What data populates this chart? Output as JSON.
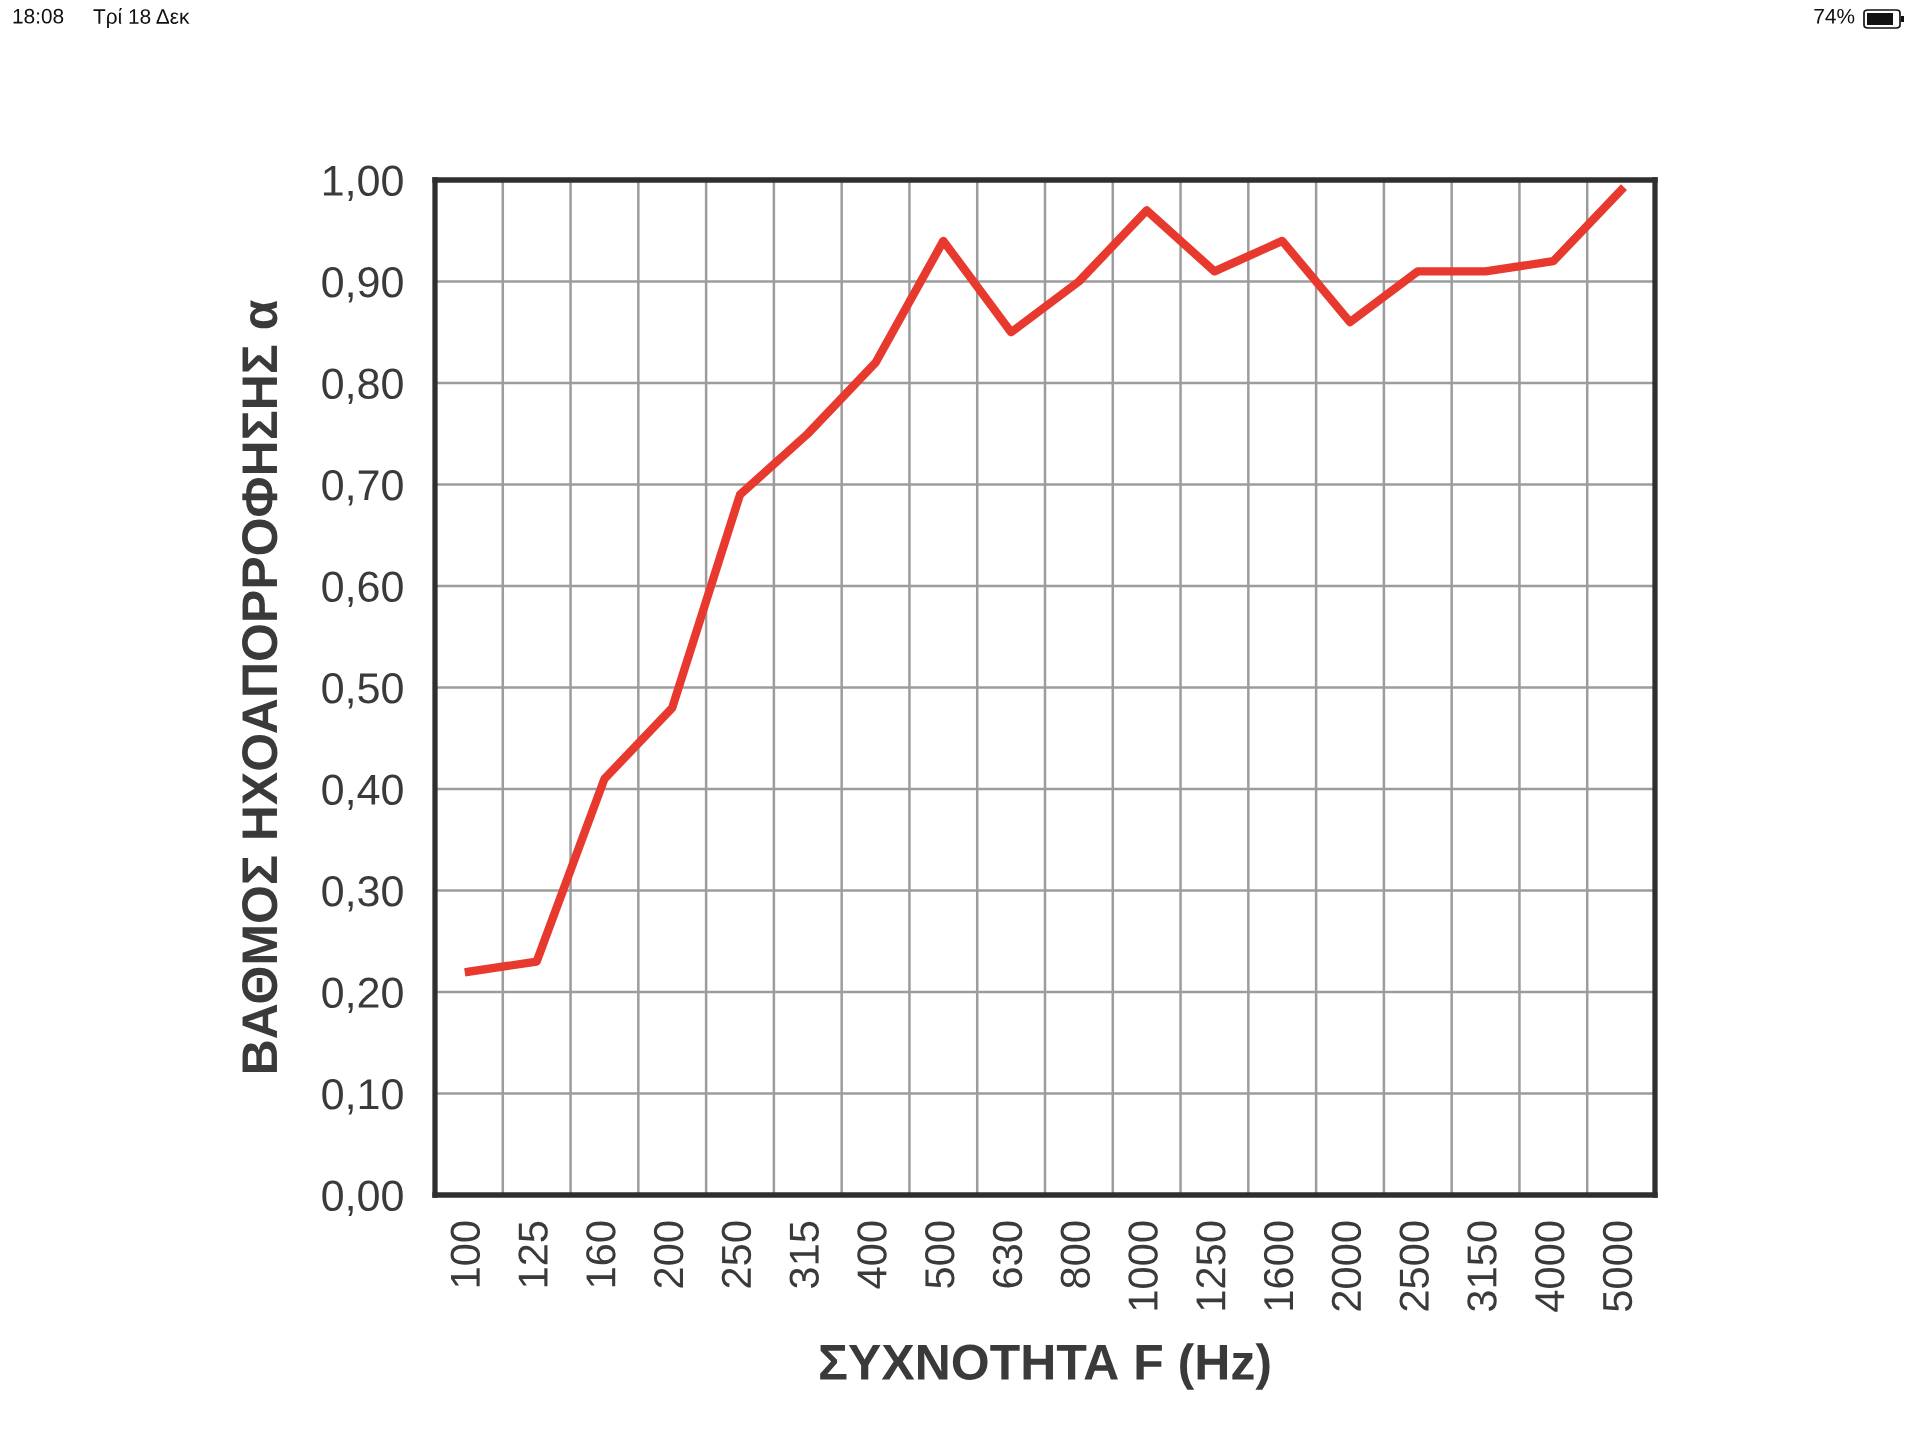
{
  "chart_data": {
    "type": "line",
    "xlabel": "ΣΥΧΝΟΤΗΤΑ F (Hz)",
    "ylabel": "ΒΑΘΜΟΣ ΗΧΟΑΠΟΡΡΟΦΗΣΗΣ α",
    "categories": [
      "100",
      "125",
      "160",
      "200",
      "250",
      "315",
      "400",
      "500",
      "630",
      "800",
      "1000",
      "1250",
      "1600",
      "2000",
      "2500",
      "3150",
      "4000",
      "5000"
    ],
    "series": [
      {
        "color": "#e8392f",
        "values": [
          0.22,
          0.23,
          0.41,
          0.48,
          0.69,
          0.75,
          0.82,
          0.94,
          0.85,
          0.9,
          0.97,
          0.91,
          0.94,
          0.86,
          0.91,
          0.91,
          0.92,
          0.99
        ]
      }
    ],
    "ylim": [
      0,
      1
    ],
    "yticks": [
      {
        "value": 0,
        "label": "0,00"
      },
      {
        "value": 0.1,
        "label": "0,10"
      },
      {
        "value": 0.2,
        "label": "0,20"
      },
      {
        "value": 0.3,
        "label": "0,30"
      },
      {
        "value": 0.4,
        "label": "0,40"
      },
      {
        "value": 0.5,
        "label": "0,50"
      },
      {
        "value": 0.6,
        "label": "0,60"
      },
      {
        "value": 0.7,
        "label": "0,70"
      },
      {
        "value": 0.8,
        "label": "0,80"
      },
      {
        "value": 0.9,
        "label": "0,90"
      },
      {
        "value": 1,
        "label": "1,00"
      }
    ],
    "grid": true,
    "annotations": [
      "18:08",
      "Τρί 18 Δεκ",
      "74%"
    ]
  }
}
